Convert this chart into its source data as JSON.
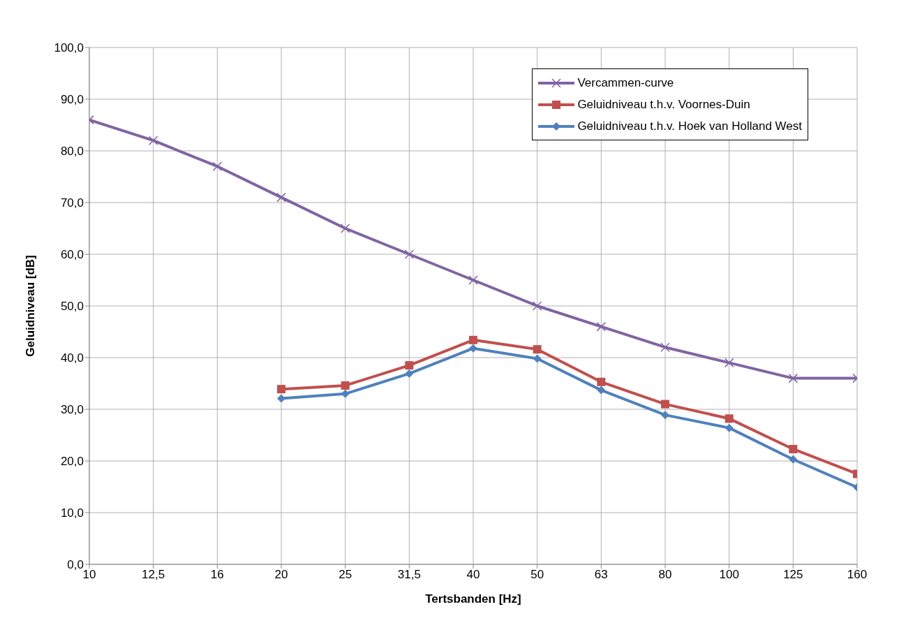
{
  "chart_data": {
    "type": "line",
    "xlabel": "Tertsbanden [Hz]",
    "ylabel": "Geluidniveau [dB]",
    "categories": [
      "10",
      "12,5",
      "16",
      "20",
      "25",
      "31,5",
      "40",
      "50",
      "63",
      "80",
      "100",
      "125",
      "160"
    ],
    "ylim": [
      0,
      100
    ],
    "yticks": [
      {
        "value": 0,
        "label": "0,0"
      },
      {
        "value": 10,
        "label": "10,0"
      },
      {
        "value": 20,
        "label": "20,0"
      },
      {
        "value": 30,
        "label": "30,0"
      },
      {
        "value": 40,
        "label": "40,0"
      },
      {
        "value": 50,
        "label": "50,0"
      },
      {
        "value": 60,
        "label": "60,0"
      },
      {
        "value": 70,
        "label": "70,0"
      },
      {
        "value": 80,
        "label": "80,0"
      },
      {
        "value": 90,
        "label": "90,0"
      },
      {
        "value": 100,
        "label": "100,0"
      }
    ],
    "grid": true,
    "legend": "top right",
    "line_style": "solid",
    "series": [
      {
        "name": "Vercammen-curve",
        "color": "#8064a2",
        "marker": "cross",
        "values": [
          86,
          82,
          77,
          71,
          65,
          60,
          55,
          50,
          46,
          42,
          39,
          36,
          36
        ]
      },
      {
        "name": "Geluidniveau t.h.v. Voornes-Duin",
        "color": "#c0504d",
        "marker": "square",
        "values": [
          null,
          null,
          null,
          33.9,
          34.6,
          38.5,
          43.4,
          41.6,
          35.3,
          31.0,
          28.2,
          22.3,
          17.5
        ]
      },
      {
        "name": "Geluidniveau t.h.v. Hoek van Holland West",
        "color": "#4f81bd",
        "marker": "diamond",
        "values": [
          null,
          null,
          null,
          32.1,
          33.0,
          36.9,
          41.8,
          39.8,
          33.7,
          28.9,
          26.4,
          20.3,
          14.9
        ]
      }
    ]
  }
}
